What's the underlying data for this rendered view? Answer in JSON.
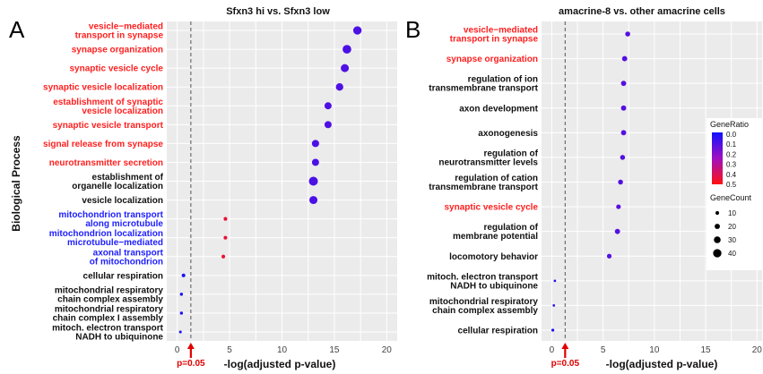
{
  "shared": {
    "ylabel": "Biological Process",
    "pvalue_label": "p=0.05"
  },
  "legend": {
    "color_title": "GeneRatio",
    "color_ticks": [
      "0.0",
      "0.1",
      "0.2",
      "0.3",
      "0.4",
      "0.5"
    ],
    "size_title": "GeneCount",
    "size_ticks": [
      "10",
      "20",
      "30",
      "40"
    ]
  },
  "chart_data": [
    {
      "type": "scatter",
      "panel": "A",
      "title": "Sfxn3 hi vs. Sfxn3 low",
      "xlabel": "-log(adjusted p-value)",
      "ylabel": "Biological Process",
      "xlim": [
        -1,
        21
      ],
      "xticks": [
        0,
        5,
        10,
        15,
        20
      ],
      "threshold_x": 1.3,
      "grid": true,
      "points": [
        {
          "label": [
            "vesicle−mediated",
            "transport in synapse"
          ],
          "x": 17.2,
          "gene_ratio": 0.1,
          "gene_count": 40,
          "label_color": "#ff2020"
        },
        {
          "label": [
            "synapse organization"
          ],
          "x": 16.2,
          "gene_ratio": 0.1,
          "gene_count": 42,
          "label_color": "#ff2020"
        },
        {
          "label": [
            "synaptic vesicle cycle"
          ],
          "x": 16.0,
          "gene_ratio": 0.11,
          "gene_count": 38,
          "label_color": "#ff2020"
        },
        {
          "label": [
            "synaptic vesicle localization"
          ],
          "x": 15.5,
          "gene_ratio": 0.11,
          "gene_count": 34,
          "label_color": "#ff2020"
        },
        {
          "label": [
            "establishment of synaptic",
            "vesicle localization"
          ],
          "x": 14.4,
          "gene_ratio": 0.11,
          "gene_count": 32,
          "label_color": "#ff2020"
        },
        {
          "label": [
            "synaptic vesicle transport"
          ],
          "x": 14.4,
          "gene_ratio": 0.11,
          "gene_count": 32,
          "label_color": "#ff2020"
        },
        {
          "label": [
            "signal release from synapse"
          ],
          "x": 13.2,
          "gene_ratio": 0.1,
          "gene_count": 33,
          "label_color": "#ff2020"
        },
        {
          "label": [
            "neurotransmitter secretion"
          ],
          "x": 13.2,
          "gene_ratio": 0.1,
          "gene_count": 32,
          "label_color": "#ff2020"
        },
        {
          "label": [
            "establishment of",
            "organelle localization"
          ],
          "x": 13.0,
          "gene_ratio": 0.1,
          "gene_count": 44,
          "label_color": "#111111"
        },
        {
          "label": [
            "vesicle localization"
          ],
          "x": 13.0,
          "gene_ratio": 0.1,
          "gene_count": 38,
          "label_color": "#111111"
        },
        {
          "label": [
            "mitochondrion transport",
            "along microtubule"
          ],
          "x": 4.6,
          "gene_ratio": 0.45,
          "gene_count": 10,
          "label_color": "#2020ff"
        },
        {
          "label": [
            "mitochondrion localization",
            "microtubule−mediated"
          ],
          "x": 4.6,
          "gene_ratio": 0.45,
          "gene_count": 10,
          "label_color": "#2020ff"
        },
        {
          "label": [
            "axonal transport",
            "of mitochondrion"
          ],
          "x": 4.4,
          "gene_ratio": 0.45,
          "gene_count": 10,
          "label_color": "#2020ff"
        },
        {
          "label": [
            "cellular respiration"
          ],
          "x": 0.6,
          "gene_ratio": 0.02,
          "gene_count": 10,
          "label_color": "#111111"
        },
        {
          "label": [
            "mitochondrial respiratory",
            "chain complex assembly"
          ],
          "x": 0.4,
          "gene_ratio": 0.02,
          "gene_count": 6,
          "label_color": "#111111"
        },
        {
          "label": [
            "mitochondrial respiratory",
            "chain complex I assembly"
          ],
          "x": 0.4,
          "gene_ratio": 0.02,
          "gene_count": 6,
          "label_color": "#111111"
        },
        {
          "label": [
            "mitoch. electron transport",
            "NADH to ubiquinone"
          ],
          "x": 0.3,
          "gene_ratio": 0.02,
          "gene_count": 4,
          "label_color": "#111111"
        }
      ]
    },
    {
      "type": "scatter",
      "panel": "B",
      "title": "amacrine-8 vs. other amacrine cells",
      "xlabel": "-log(adjusted p-value)",
      "ylabel": "",
      "xlim": [
        -1,
        20.5
      ],
      "xticks": [
        0,
        5,
        10,
        15,
        20
      ],
      "threshold_x": 1.3,
      "grid": true,
      "points": [
        {
          "label": [
            "vesicle−mediated",
            "transport in synapse"
          ],
          "x": 7.4,
          "gene_ratio": 0.12,
          "gene_count": 18,
          "label_color": "#ff2020"
        },
        {
          "label": [
            "synapse organization"
          ],
          "x": 7.1,
          "gene_ratio": 0.12,
          "gene_count": 20,
          "label_color": "#ff2020"
        },
        {
          "label": [
            "regulation of ion",
            "transmembrane transport"
          ],
          "x": 7.0,
          "gene_ratio": 0.12,
          "gene_count": 20,
          "label_color": "#111111"
        },
        {
          "label": [
            "axon development"
          ],
          "x": 7.0,
          "gene_ratio": 0.12,
          "gene_count": 20,
          "label_color": "#111111"
        },
        {
          "label": [
            "axonogenesis"
          ],
          "x": 7.0,
          "gene_ratio": 0.12,
          "gene_count": 20,
          "label_color": "#111111"
        },
        {
          "label": [
            "regulation of",
            "neurotransmitter levels"
          ],
          "x": 6.9,
          "gene_ratio": 0.12,
          "gene_count": 18,
          "label_color": "#111111"
        },
        {
          "label": [
            "regulation of cation",
            "transmembrane transport"
          ],
          "x": 6.7,
          "gene_ratio": 0.12,
          "gene_count": 18,
          "label_color": "#111111"
        },
        {
          "label": [
            "synaptic vesicle cycle"
          ],
          "x": 6.5,
          "gene_ratio": 0.13,
          "gene_count": 16,
          "label_color": "#ff2020"
        },
        {
          "label": [
            "regulation of",
            "membrane potential"
          ],
          "x": 6.4,
          "gene_ratio": 0.12,
          "gene_count": 20,
          "label_color": "#111111"
        },
        {
          "label": [
            "locomotory behavior"
          ],
          "x": 5.6,
          "gene_ratio": 0.12,
          "gene_count": 16,
          "label_color": "#111111"
        },
        {
          "label": [
            "mitoch. electron transport",
            "NADH to ubiquinone"
          ],
          "x": 0.3,
          "gene_ratio": 0.03,
          "gene_count": 2,
          "label_color": "#111111"
        },
        {
          "label": [
            "mitochondrial respiratory",
            "chain complex assembly"
          ],
          "x": 0.2,
          "gene_ratio": 0.03,
          "gene_count": 2,
          "label_color": "#111111"
        },
        {
          "label": [
            "cellular respiration"
          ],
          "x": 0.1,
          "gene_ratio": 0.02,
          "gene_count": 5,
          "label_color": "#111111"
        }
      ]
    }
  ]
}
